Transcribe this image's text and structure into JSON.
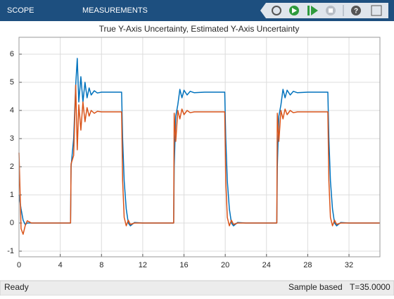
{
  "ui": {
    "tabs": [
      "SCOPE",
      "MEASUREMENTS"
    ],
    "status": {
      "state": "Ready",
      "mode": "Sample based",
      "time": "T=35.0000"
    }
  },
  "chart_data": {
    "type": "line",
    "title": "True Y-Axis Uncertainty, Estimated Y-Axis Uncertainty",
    "x": [
      0,
      0.2,
      0.4,
      0.6,
      0.8,
      1.2,
      2,
      5,
      5.05,
      5.3,
      5.5,
      5.65,
      5.8,
      6.0,
      6.2,
      6.4,
      6.6,
      6.8,
      7.0,
      7.3,
      7.6,
      8,
      9,
      9.95,
      10.05,
      10.2,
      10.4,
      10.6,
      10.8,
      11.2,
      12,
      15,
      15.05,
      15.2,
      15.4,
      15.6,
      15.8,
      16.0,
      16.3,
      16.6,
      17,
      18,
      19.95,
      20.05,
      20.2,
      20.4,
      20.6,
      20.8,
      21.2,
      22,
      25,
      25.05,
      25.2,
      25.4,
      25.6,
      25.8,
      26.0,
      26.3,
      26.6,
      27,
      28,
      29.95,
      30.05,
      30.2,
      30.4,
      30.6,
      30.8,
      31.2,
      32,
      35
    ],
    "series": [
      {
        "color": "#0072bd",
        "values": [
          1.0,
          0.5,
          0.1,
          -0.05,
          0,
          0,
          0,
          0,
          2.0,
          3.0,
          4.9,
          5.85,
          4.3,
          5.2,
          4.3,
          5.0,
          4.45,
          4.8,
          4.55,
          4.7,
          4.62,
          4.65,
          4.65,
          4.65,
          3.0,
          1.5,
          0.5,
          0,
          -0.1,
          0.02,
          0,
          0,
          2.0,
          3.8,
          4.2,
          4.75,
          4.45,
          4.72,
          4.55,
          4.68,
          4.63,
          4.65,
          4.65,
          3.0,
          1.5,
          0.5,
          0,
          -0.1,
          0.02,
          0,
          0,
          2.0,
          3.8,
          4.2,
          4.75,
          4.45,
          4.72,
          4.55,
          4.68,
          4.63,
          4.65,
          4.65,
          3.0,
          1.5,
          0.5,
          0,
          -0.1,
          0.02,
          0,
          0
        ]
      },
      {
        "color": "#d95319",
        "values": [
          2.5,
          -0.2,
          -0.4,
          -0.1,
          0.08,
          0,
          0,
          0,
          2.1,
          2.4,
          4.9,
          2.6,
          4.2,
          3.3,
          4.3,
          3.6,
          4.1,
          3.8,
          4.0,
          3.9,
          3.97,
          3.95,
          3.95,
          3.95,
          1.5,
          0.2,
          -0.1,
          0.1,
          -0.05,
          0,
          0,
          0,
          3.9,
          2.9,
          4.0,
          3.7,
          4.05,
          3.85,
          4.0,
          3.92,
          3.95,
          3.95,
          3.95,
          1.5,
          0.2,
          -0.1,
          0.1,
          -0.05,
          0,
          0,
          0,
          3.9,
          2.9,
          4.0,
          3.7,
          4.05,
          3.85,
          4.0,
          3.92,
          3.95,
          3.95,
          3.95,
          1.5,
          0.2,
          -0.1,
          0.1,
          -0.05,
          0,
          0,
          0
        ]
      }
    ],
    "xlim": [
      0,
      35
    ],
    "xticks": [
      0,
      4,
      8,
      12,
      16,
      20,
      24,
      28,
      32
    ],
    "ylim": [
      -1.2,
      6.6
    ],
    "yticks": [
      -1,
      0,
      1,
      2,
      3,
      4,
      5,
      6
    ],
    "grid": true
  }
}
